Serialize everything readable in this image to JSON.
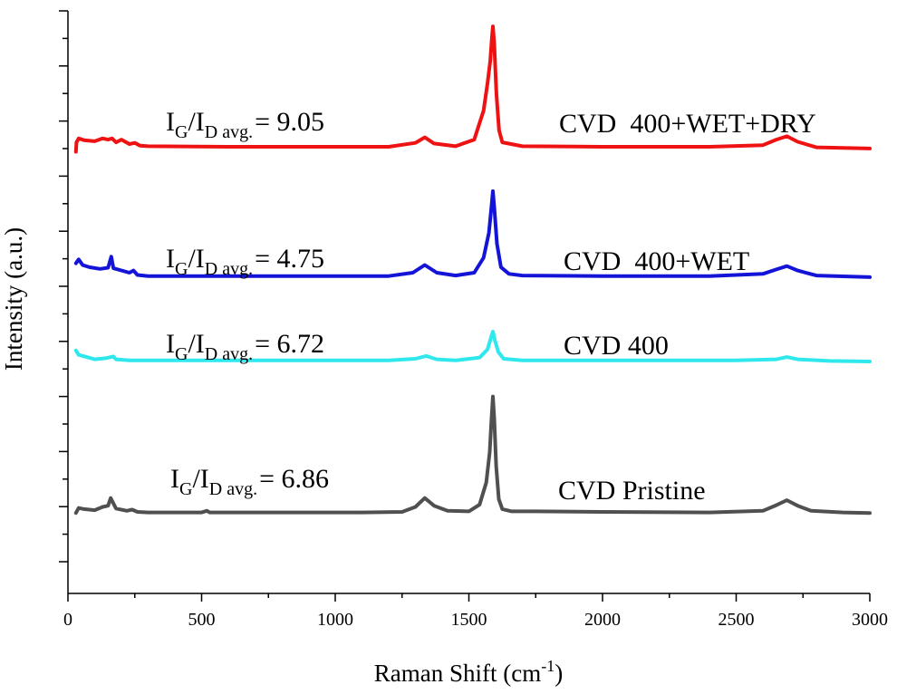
{
  "chart_data": {
    "type": "line",
    "title": "",
    "xlabel": "Raman Shift (cm",
    "xlabel_sup": "-1",
    "xlabel_close": ")",
    "ylabel": "Intensity (a.u.)",
    "xlim": [
      0,
      3000
    ],
    "ylim": [
      0,
      10.5
    ],
    "x_ticks": [
      0,
      500,
      1000,
      1500,
      2000,
      2500,
      3000
    ],
    "x_tick_labels": [
      "0",
      "500",
      "1000",
      "1500",
      "2000",
      "2500",
      "3000"
    ],
    "y_minor_tick_count": 21,
    "grid": false,
    "legend": "none",
    "series": [
      {
        "name": "CVD Pristine",
        "color": "#505050",
        "baseline": 1.45,
        "points": [
          [
            30,
            1.45
          ],
          [
            40,
            1.54
          ],
          [
            60,
            1.52
          ],
          [
            100,
            1.5
          ],
          [
            130,
            1.56
          ],
          [
            150,
            1.58
          ],
          [
            160,
            1.72
          ],
          [
            170,
            1.62
          ],
          [
            180,
            1.53
          ],
          [
            220,
            1.49
          ],
          [
            240,
            1.51
          ],
          [
            260,
            1.47
          ],
          [
            300,
            1.46
          ],
          [
            400,
            1.46
          ],
          [
            500,
            1.46
          ],
          [
            520,
            1.49
          ],
          [
            530,
            1.46
          ],
          [
            700,
            1.46
          ],
          [
            900,
            1.46
          ],
          [
            1100,
            1.46
          ],
          [
            1250,
            1.47
          ],
          [
            1300,
            1.56
          ],
          [
            1335,
            1.72
          ],
          [
            1370,
            1.58
          ],
          [
            1420,
            1.49
          ],
          [
            1500,
            1.48
          ],
          [
            1540,
            1.6
          ],
          [
            1565,
            2.0
          ],
          [
            1578,
            2.55
          ],
          [
            1584,
            3.1
          ],
          [
            1590,
            3.55
          ],
          [
            1595,
            3.15
          ],
          [
            1602,
            2.3
          ],
          [
            1612,
            1.7
          ],
          [
            1625,
            1.52
          ],
          [
            1660,
            1.48
          ],
          [
            1750,
            1.48
          ],
          [
            2000,
            1.47
          ],
          [
            2400,
            1.46
          ],
          [
            2600,
            1.49
          ],
          [
            2650,
            1.59
          ],
          [
            2690,
            1.68
          ],
          [
            2730,
            1.58
          ],
          [
            2780,
            1.49
          ],
          [
            2900,
            1.46
          ],
          [
            3000,
            1.45
          ]
        ]
      },
      {
        "name": "CVD 400",
        "color": "#2ee8ee",
        "baseline": 4.2,
        "points": [
          [
            30,
            4.38
          ],
          [
            40,
            4.3
          ],
          [
            70,
            4.26
          ],
          [
            100,
            4.22
          ],
          [
            140,
            4.24
          ],
          [
            170,
            4.27
          ],
          [
            180,
            4.22
          ],
          [
            230,
            4.2
          ],
          [
            300,
            4.2
          ],
          [
            600,
            4.2
          ],
          [
            900,
            4.2
          ],
          [
            1200,
            4.2
          ],
          [
            1300,
            4.23
          ],
          [
            1340,
            4.28
          ],
          [
            1380,
            4.22
          ],
          [
            1450,
            4.2
          ],
          [
            1540,
            4.25
          ],
          [
            1570,
            4.4
          ],
          [
            1583,
            4.62
          ],
          [
            1590,
            4.72
          ],
          [
            1598,
            4.55
          ],
          [
            1610,
            4.35
          ],
          [
            1630,
            4.23
          ],
          [
            1700,
            4.2
          ],
          [
            2000,
            4.2
          ],
          [
            2500,
            4.2
          ],
          [
            2650,
            4.22
          ],
          [
            2690,
            4.26
          ],
          [
            2730,
            4.22
          ],
          [
            2850,
            4.19
          ],
          [
            3000,
            4.18
          ]
        ]
      },
      {
        "name": "CVD 400+WET",
        "color": "#1414d8",
        "baseline": 5.7,
        "points": [
          [
            30,
            5.95
          ],
          [
            40,
            6.02
          ],
          [
            55,
            5.92
          ],
          [
            80,
            5.88
          ],
          [
            120,
            5.85
          ],
          [
            150,
            5.87
          ],
          [
            162,
            6.07
          ],
          [
            170,
            5.86
          ],
          [
            230,
            5.78
          ],
          [
            245,
            5.82
          ],
          [
            260,
            5.74
          ],
          [
            300,
            5.72
          ],
          [
            600,
            5.72
          ],
          [
            900,
            5.72
          ],
          [
            1200,
            5.72
          ],
          [
            1290,
            5.78
          ],
          [
            1335,
            5.92
          ],
          [
            1380,
            5.78
          ],
          [
            1450,
            5.73
          ],
          [
            1520,
            5.78
          ],
          [
            1555,
            6.05
          ],
          [
            1575,
            6.5
          ],
          [
            1585,
            7.0
          ],
          [
            1590,
            7.25
          ],
          [
            1596,
            6.9
          ],
          [
            1605,
            6.3
          ],
          [
            1620,
            5.88
          ],
          [
            1650,
            5.76
          ],
          [
            1700,
            5.73
          ],
          [
            2000,
            5.72
          ],
          [
            2400,
            5.72
          ],
          [
            2600,
            5.76
          ],
          [
            2650,
            5.84
          ],
          [
            2690,
            5.9
          ],
          [
            2730,
            5.82
          ],
          [
            2800,
            5.73
          ],
          [
            3000,
            5.7
          ]
        ]
      },
      {
        "name": "CVD 400+WET+DRY",
        "color": "#ee1212",
        "baseline": 8.0,
        "points": [
          [
            30,
            7.96
          ],
          [
            32,
            8.13
          ],
          [
            40,
            8.2
          ],
          [
            60,
            8.17
          ],
          [
            100,
            8.15
          ],
          [
            130,
            8.2
          ],
          [
            150,
            8.18
          ],
          [
            165,
            8.2
          ],
          [
            180,
            8.13
          ],
          [
            200,
            8.18
          ],
          [
            230,
            8.1
          ],
          [
            250,
            8.12
          ],
          [
            270,
            8.07
          ],
          [
            300,
            8.06
          ],
          [
            600,
            8.05
          ],
          [
            900,
            8.05
          ],
          [
            1200,
            8.05
          ],
          [
            1300,
            8.12
          ],
          [
            1335,
            8.22
          ],
          [
            1370,
            8.11
          ],
          [
            1450,
            8.06
          ],
          [
            1520,
            8.18
          ],
          [
            1555,
            8.7
          ],
          [
            1570,
            9.2
          ],
          [
            1580,
            9.6
          ],
          [
            1585,
            9.95
          ],
          [
            1590,
            10.22
          ],
          [
            1595,
            9.9
          ],
          [
            1603,
            9.0
          ],
          [
            1613,
            8.35
          ],
          [
            1625,
            8.13
          ],
          [
            1700,
            8.06
          ],
          [
            2000,
            8.05
          ],
          [
            2400,
            8.05
          ],
          [
            2600,
            8.08
          ],
          [
            2650,
            8.18
          ],
          [
            2690,
            8.24
          ],
          [
            2730,
            8.14
          ],
          [
            2800,
            8.04
          ],
          [
            3000,
            8.02
          ]
        ]
      }
    ],
    "annotations": [
      {
        "prefix": "I",
        "sub1": "G",
        "mid": "/I",
        "sub2": "D avg.",
        "suffix": "= 9.05"
      },
      {
        "prefix": "I",
        "sub1": "G",
        "mid": "/I",
        "sub2": "D avg.",
        "suffix": "= 4.75"
      },
      {
        "prefix": "I",
        "sub1": "G",
        "mid": "/I",
        "sub2": "D avg.",
        "suffix": "= 6.72"
      },
      {
        "prefix": "I",
        "sub1": "G",
        "mid": "/I",
        "sub2": "D avg.",
        "suffix": "= 6.86"
      }
    ],
    "series_labels": [
      "CVD  400+WET+DRY",
      "CVD  400+WET",
      "CVD 400",
      "CVD Pristine"
    ]
  }
}
